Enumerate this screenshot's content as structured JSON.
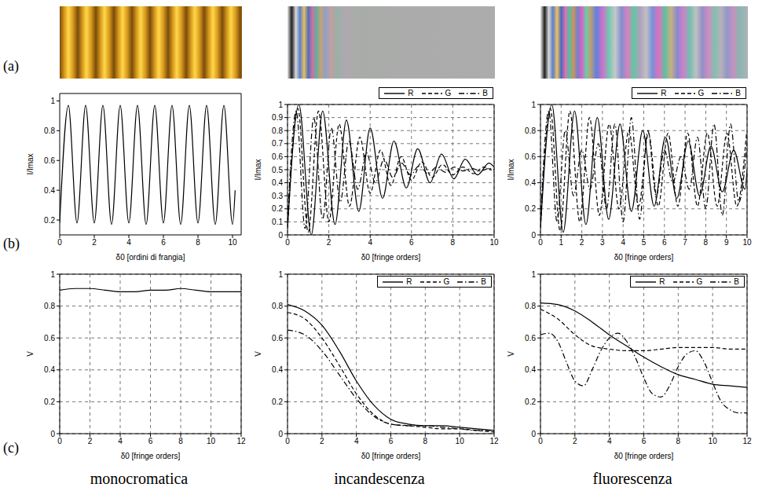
{
  "row_labels": [
    "(a)",
    "(b)",
    "(c)"
  ],
  "captions": [
    "monocromatica",
    "incandescenza",
    "fluorescenza"
  ],
  "chart_data": [
    {
      "type": "line",
      "x_label": "δ0 [ordini di frangia]",
      "y_label": "I/Imax",
      "xlim": [
        0,
        10.5
      ],
      "ylim": [
        0.1,
        1.05
      ],
      "xticks": [
        0,
        2,
        4,
        6,
        8,
        10
      ],
      "yticks": [
        0.2,
        0.4,
        0.6,
        0.8,
        1
      ],
      "grid": false,
      "series": [
        {
          "color": "#000000",
          "line_style": "solid",
          "x": [
            0,
            0.5,
            1,
            1.5,
            2,
            2.5,
            3,
            3.5,
            4,
            4.5,
            5,
            5.5,
            6,
            6.5,
            7,
            7.5,
            8,
            8.5,
            9,
            9.5,
            10,
            10.15
          ],
          "values": [
            0.18,
            0.97,
            0.18,
            0.97,
            0.18,
            0.97,
            0.17,
            0.97,
            0.18,
            0.97,
            0.17,
            0.97,
            0.18,
            0.97,
            0.17,
            0.97,
            0.18,
            0.97,
            0.17,
            0.97,
            0.17,
            0.4
          ]
        }
      ]
    },
    {
      "type": "line",
      "x_label": "δ0 [fringe orders]",
      "y_label": "I/Imax",
      "xlim": [
        0,
        10
      ],
      "ylim": [
        0,
        1
      ],
      "xticks": [
        0,
        2,
        4,
        6,
        8,
        10
      ],
      "yticks": [
        0,
        0.1,
        0.2,
        0.3,
        0.4,
        0.5,
        0.6,
        0.7,
        0.8,
        0.9,
        1
      ],
      "grid": true,
      "legend": "top",
      "series": [
        {
          "name": "R",
          "color": "#000000",
          "line_style": "solid",
          "x": [
            0,
            0.55,
            1.15,
            1.7,
            2.3,
            2.85,
            3.45,
            4,
            4.6,
            5.15,
            5.75,
            6.3,
            6.9,
            7.45,
            8.05,
            8.6,
            9.2,
            9.75,
            10
          ],
          "values": [
            0.05,
            1,
            0,
            0.95,
            0.08,
            0.88,
            0.18,
            0.82,
            0.28,
            0.72,
            0.36,
            0.66,
            0.4,
            0.62,
            0.43,
            0.58,
            0.46,
            0.55,
            0.52
          ]
        },
        {
          "name": "G",
          "color": "#000000",
          "line_style": "dashed",
          "x": [
            0,
            0.5,
            1,
            1.5,
            2,
            2.5,
            3,
            3.5,
            4,
            4.5,
            5,
            5.5,
            6,
            6.5,
            7,
            7.5,
            8,
            8.5,
            9,
            9.5,
            10
          ],
          "values": [
            0.05,
            0.97,
            0.02,
            0.95,
            0.1,
            0.85,
            0.22,
            0.75,
            0.32,
            0.65,
            0.38,
            0.6,
            0.42,
            0.56,
            0.44,
            0.54,
            0.46,
            0.52,
            0.47,
            0.52,
            0.48
          ]
        },
        {
          "name": "B",
          "color": "#000000",
          "line_style": "dashdot",
          "x": [
            0,
            0.42,
            0.85,
            1.27,
            1.7,
            2.12,
            2.55,
            2.97,
            3.4,
            3.82,
            4.25,
            4.67,
            5.1,
            5.52,
            5.95,
            6.37,
            6.8,
            7.22,
            7.65,
            8.07,
            8.5,
            8.92,
            9.35,
            9.77,
            10
          ],
          "values": [
            0.1,
            0.95,
            0.05,
            0.9,
            0.12,
            0.82,
            0.25,
            0.72,
            0.35,
            0.63,
            0.4,
            0.58,
            0.44,
            0.55,
            0.46,
            0.53,
            0.47,
            0.52,
            0.48,
            0.52,
            0.49,
            0.51,
            0.49,
            0.51,
            0.5
          ]
        }
      ]
    },
    {
      "type": "line",
      "x_label": "δ0 [fringe orders]",
      "y_label": "I/Imax",
      "xlim": [
        0,
        10
      ],
      "ylim": [
        0,
        1
      ],
      "xticks": [
        0,
        1,
        2,
        3,
        4,
        5,
        6,
        7,
        8,
        9,
        10
      ],
      "yticks": [
        0,
        0.2,
        0.4,
        0.6,
        0.8,
        1
      ],
      "grid": true,
      "legend": "top",
      "series": [
        {
          "name": "R",
          "color": "#000000",
          "line_style": "solid",
          "x": [
            0,
            0.55,
            1.1,
            1.65,
            2.2,
            2.75,
            3.3,
            3.85,
            4.4,
            4.95,
            5.5,
            6.05,
            6.6,
            7.15,
            7.7,
            8.25,
            8.8,
            9.35,
            9.9,
            10
          ],
          "values": [
            0.05,
            1,
            0.02,
            0.95,
            0.08,
            0.9,
            0.12,
            0.85,
            0.18,
            0.8,
            0.22,
            0.75,
            0.28,
            0.72,
            0.3,
            0.68,
            0.33,
            0.65,
            0.35,
            0.5
          ]
        },
        {
          "name": "G",
          "color": "#000000",
          "line_style": "dashed",
          "x": [
            0,
            0.475,
            0.95,
            1.425,
            1.9,
            2.375,
            2.85,
            3.325,
            3.8,
            4.275,
            4.75,
            5.225,
            5.7,
            6.175,
            6.65,
            7.125,
            7.6,
            8.075,
            8.55,
            9.025,
            9.5,
            9.975
          ],
          "values": [
            0.05,
            0.97,
            0.03,
            0.95,
            0.1,
            0.9,
            0.15,
            0.85,
            0.2,
            0.8,
            0.22,
            0.78,
            0.22,
            0.78,
            0.22,
            0.78,
            0.22,
            0.78,
            0.22,
            0.78,
            0.22,
            0.78
          ]
        },
        {
          "name": "B",
          "color": "#000000",
          "line_style": "dashdot",
          "x": [
            0,
            0.4,
            0.8,
            1.2,
            1.6,
            2,
            2.4,
            2.8,
            3.2,
            3.6,
            4,
            4.4,
            4.8,
            5.2,
            5.6,
            6,
            6.4,
            6.8,
            7.2,
            7.6,
            8,
            8.4,
            8.8,
            9.2,
            9.6,
            10
          ],
          "values": [
            0.1,
            0.95,
            0.1,
            0.8,
            0.3,
            0.65,
            0.35,
            0.7,
            0.2,
            0.85,
            0.1,
            0.9,
            0.12,
            0.8,
            0.3,
            0.65,
            0.4,
            0.6,
            0.35,
            0.75,
            0.2,
            0.85,
            0.15,
            0.85,
            0.25,
            0.7
          ]
        }
      ]
    },
    {
      "type": "line",
      "x_label": "δ0 [fringe orders]",
      "y_label": "V",
      "xlim": [
        0,
        12
      ],
      "ylim": [
        0,
        1
      ],
      "xticks": [
        0,
        2,
        4,
        6,
        8,
        10,
        12
      ],
      "yticks": [
        0,
        0.2,
        0.4,
        0.6,
        0.8,
        1
      ],
      "grid": true,
      "series": [
        {
          "color": "#000000",
          "line_style": "solid",
          "x": [
            0,
            1,
            2,
            3,
            4,
            5,
            6,
            7,
            8,
            9,
            10,
            11,
            12
          ],
          "values": [
            0.9,
            0.91,
            0.91,
            0.9,
            0.89,
            0.89,
            0.9,
            0.9,
            0.91,
            0.9,
            0.89,
            0.89,
            0.89
          ]
        }
      ]
    },
    {
      "type": "line",
      "x_label": "δ0 [fringe orders]",
      "y_label": "V",
      "xlim": [
        0,
        12
      ],
      "ylim": [
        0,
        1
      ],
      "xticks": [
        0,
        2,
        4,
        6,
        8,
        10,
        12
      ],
      "yticks": [
        0,
        0.2,
        0.4,
        0.6,
        0.8,
        1
      ],
      "grid": true,
      "legend": "upper right",
      "series": [
        {
          "name": "R",
          "color": "#000000",
          "line_style": "solid",
          "x": [
            0,
            1,
            2,
            3,
            4,
            5,
            6,
            7,
            8,
            9,
            10,
            11,
            12
          ],
          "values": [
            0.81,
            0.77,
            0.68,
            0.52,
            0.33,
            0.18,
            0.09,
            0.06,
            0.05,
            0.05,
            0.04,
            0.03,
            0.02
          ]
        },
        {
          "name": "G",
          "color": "#000000",
          "line_style": "dashed",
          "x": [
            0,
            1,
            2,
            3,
            4,
            5,
            6,
            7,
            8,
            9,
            10,
            11,
            12
          ],
          "values": [
            0.76,
            0.72,
            0.6,
            0.43,
            0.25,
            0.12,
            0.06,
            0.05,
            0.04,
            0.03,
            0.03,
            0.02,
            0.01
          ]
        },
        {
          "name": "B",
          "color": "#000000",
          "line_style": "dashdot",
          "x": [
            0,
            1,
            2,
            3,
            4,
            5,
            6,
            7,
            8,
            9,
            10,
            11,
            12
          ],
          "values": [
            0.65,
            0.62,
            0.52,
            0.37,
            0.22,
            0.11,
            0.06,
            0.05,
            0.05,
            0.04,
            0.03,
            0.02,
            0.02
          ]
        }
      ]
    },
    {
      "type": "line",
      "x_label": "δ0 [fringe orders]",
      "y_label": "V",
      "xlim": [
        0,
        12
      ],
      "ylim": [
        0,
        1
      ],
      "xticks": [
        0,
        2,
        4,
        6,
        8,
        10,
        12
      ],
      "yticks": [
        0,
        0.2,
        0.4,
        0.6,
        0.8,
        1
      ],
      "grid": true,
      "legend": "upper right",
      "series": [
        {
          "name": "R",
          "color": "#000000",
          "line_style": "solid",
          "x": [
            0,
            1,
            2,
            3,
            4,
            5,
            6,
            7,
            8,
            9,
            10,
            11,
            12
          ],
          "values": [
            0.82,
            0.81,
            0.77,
            0.7,
            0.62,
            0.55,
            0.48,
            0.42,
            0.37,
            0.34,
            0.31,
            0.3,
            0.29
          ]
        },
        {
          "name": "G",
          "color": "#000000",
          "line_style": "dashed",
          "x": [
            0,
            1,
            2,
            3,
            4,
            5,
            6,
            7,
            8,
            9,
            10,
            11,
            12
          ],
          "values": [
            0.78,
            0.72,
            0.62,
            0.55,
            0.53,
            0.52,
            0.52,
            0.53,
            0.54,
            0.54,
            0.54,
            0.53,
            0.53
          ]
        },
        {
          "name": "B",
          "color": "#000000",
          "line_style": "dashdot",
          "x": [
            0,
            0.5,
            1,
            1.5,
            2,
            2.5,
            3,
            3.5,
            4,
            4.5,
            5,
            5.5,
            6,
            6.5,
            7,
            7.5,
            8,
            8.5,
            9,
            9.5,
            10,
            10.5,
            11,
            11.5,
            12
          ],
          "values": [
            0.62,
            0.63,
            0.58,
            0.45,
            0.33,
            0.3,
            0.4,
            0.52,
            0.6,
            0.63,
            0.58,
            0.48,
            0.35,
            0.25,
            0.23,
            0.3,
            0.42,
            0.5,
            0.52,
            0.45,
            0.32,
            0.2,
            0.15,
            0.13,
            0.13
          ]
        }
      ]
    }
  ]
}
